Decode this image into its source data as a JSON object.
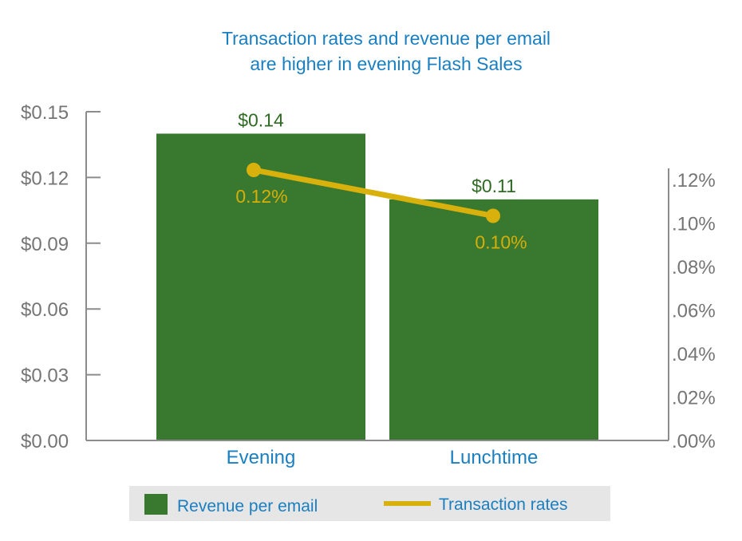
{
  "chart_data": {
    "type": "bar",
    "title": [
      "Transaction rates and revenue per email",
      "are higher in evening Flash Sales"
    ],
    "categories": [
      "Evening",
      "Lunchtime"
    ],
    "series": [
      {
        "name": "Revenue per email",
        "type": "bar",
        "axis": "left",
        "values": [
          0.14,
          0.11
        ],
        "labels": [
          "$0.14",
          "$0.11"
        ],
        "color": "#38792f"
      },
      {
        "name": "Transaction rates",
        "type": "line",
        "axis": "right",
        "values": [
          0.12,
          0.1
        ],
        "labels": [
          "0.12%",
          "0.10%"
        ],
        "color": "#d9b10c"
      }
    ],
    "left_axis": {
      "ylim": [
        0,
        0.15
      ],
      "ticks": [
        0,
        0.03,
        0.06,
        0.09,
        0.12,
        0.15
      ],
      "tick_labels": [
        "$0.00",
        "$0.03",
        "$0.06",
        "$0.09",
        "$0.12",
        "$0.15"
      ]
    },
    "right_axis": {
      "ylim": [
        0,
        0.14
      ],
      "ticks": [
        0,
        0.02,
        0.04,
        0.06,
        0.08,
        0.1,
        0.12
      ],
      "tick_labels": [
        ".00%",
        ".02%",
        ".04%",
        ".06%",
        ".08%",
        ".10%",
        ".12%"
      ]
    },
    "legend_position": "bottom",
    "grid": false
  },
  "colors": {
    "axis": "#8c8c8c",
    "tick_text": "#757575",
    "title": "#1a7fc1",
    "legend_bg": "#e6e6e6"
  }
}
